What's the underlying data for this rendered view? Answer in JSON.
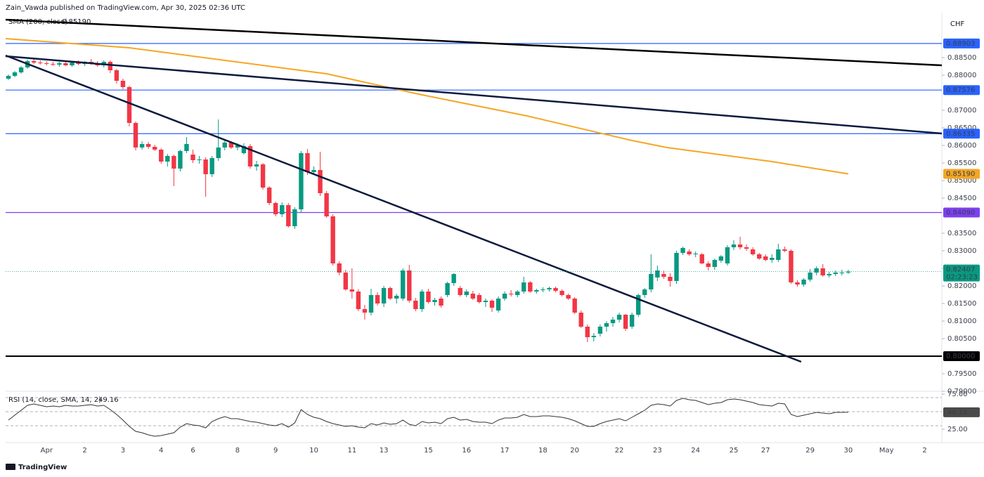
{
  "header": "Zain_Vawda published on TradingView.com, Apr 30, 2025 02:36 UTC",
  "currency": "CHF",
  "brand": "TradingView",
  "chart_data": {
    "type": "candlestick",
    "up_color": "#089981",
    "down_color": "#f23645",
    "xlim": [
      -0.44,
      146.7
    ],
    "xticks": [
      {
        "value": 6,
        "label": "Apr"
      },
      {
        "value": 12,
        "label": "2"
      },
      {
        "value": 18,
        "label": "3"
      },
      {
        "value": 24,
        "label": "4"
      },
      {
        "value": 29,
        "label": "6"
      },
      {
        "value": 36,
        "label": "8"
      },
      {
        "value": 42,
        "label": "9"
      },
      {
        "value": 48,
        "label": "10"
      },
      {
        "value": 54,
        "label": "11"
      },
      {
        "value": 59,
        "label": "13"
      },
      {
        "value": 66,
        "label": "15"
      },
      {
        "value": 72,
        "label": "16"
      },
      {
        "value": 78,
        "label": "17"
      },
      {
        "value": 84,
        "label": "18"
      },
      {
        "value": 89,
        "label": "20"
      },
      {
        "value": 96,
        "label": "22"
      },
      {
        "value": 102,
        "label": "23"
      },
      {
        "value": 108,
        "label": "24"
      },
      {
        "value": 114,
        "label": "25"
      },
      {
        "value": 119,
        "label": "27"
      },
      {
        "value": 126,
        "label": "29"
      },
      {
        "value": 132,
        "label": "30"
      },
      {
        "value": 138,
        "label": "May"
      },
      {
        "value": 144,
        "label": "2"
      }
    ],
    "ylim": [
      0.79,
      0.8978
    ],
    "yticks": [
      {
        "value": 0.885,
        "label": "0.88500"
      },
      {
        "value": 0.88,
        "label": "0.88000"
      },
      {
        "value": 0.87,
        "label": "0.87000"
      },
      {
        "value": 0.865,
        "label": "0.86500"
      },
      {
        "value": 0.86,
        "label": "0.86000"
      },
      {
        "value": 0.855,
        "label": "0.85500"
      },
      {
        "value": 0.85,
        "label": "0.85000"
      },
      {
        "value": 0.845,
        "label": "0.84500"
      },
      {
        "value": 0.835,
        "label": "0.83500"
      },
      {
        "value": 0.83,
        "label": "0.83000"
      },
      {
        "value": 0.825,
        "label": "0.82500"
      },
      {
        "value": 0.82,
        "label": "0.82000"
      },
      {
        "value": 0.815,
        "label": "0.81500"
      },
      {
        "value": 0.81,
        "label": "0.81000"
      },
      {
        "value": 0.805,
        "label": "0.80500"
      },
      {
        "value": 0.795,
        "label": "0.79500"
      },
      {
        "value": 0.79,
        "label": "0.79000"
      }
    ],
    "ohlc": [
      [
        0.879,
        0.8802,
        0.8786,
        0.8798
      ],
      [
        0.8798,
        0.8812,
        0.8794,
        0.8808
      ],
      [
        0.8808,
        0.8826,
        0.8804,
        0.8822
      ],
      [
        0.8822,
        0.8844,
        0.8818,
        0.884
      ],
      [
        0.884,
        0.8848,
        0.8832,
        0.8836
      ],
      [
        0.8836,
        0.8842,
        0.883,
        0.8834
      ],
      [
        0.8834,
        0.884,
        0.8828,
        0.8832
      ],
      [
        0.8832,
        0.8838,
        0.8826,
        0.883
      ],
      [
        0.883,
        0.8838,
        0.8824,
        0.8834
      ],
      [
        0.8834,
        0.8842,
        0.8826,
        0.8828
      ],
      [
        0.8828,
        0.884,
        0.8824,
        0.8836
      ],
      [
        0.8836,
        0.8842,
        0.8828,
        0.8832
      ],
      [
        0.8832,
        0.884,
        0.8826,
        0.8838
      ],
      [
        0.8838,
        0.8846,
        0.883,
        0.8834
      ],
      [
        0.8834,
        0.884,
        0.8824,
        0.8828
      ],
      [
        0.8828,
        0.8842,
        0.8822,
        0.8838
      ],
      [
        0.8838,
        0.8842,
        0.8806,
        0.8814
      ],
      [
        0.8814,
        0.8818,
        0.8776,
        0.8784
      ],
      [
        0.8784,
        0.879,
        0.876,
        0.8766
      ],
      [
        0.8766,
        0.877,
        0.8654,
        0.8664
      ],
      [
        0.8664,
        0.8668,
        0.8586,
        0.8594
      ],
      [
        0.8594,
        0.8612,
        0.8588,
        0.8604
      ],
      [
        0.8604,
        0.861,
        0.859,
        0.8596
      ],
      [
        0.8596,
        0.8602,
        0.8584,
        0.8588
      ],
      [
        0.8588,
        0.8592,
        0.8548,
        0.8554
      ],
      [
        0.8554,
        0.8576,
        0.854,
        0.857
      ],
      [
        0.857,
        0.8574,
        0.8484,
        0.8534
      ],
      [
        0.8534,
        0.8588,
        0.8526,
        0.8584
      ],
      [
        0.8584,
        0.8624,
        0.8578,
        0.8604
      ],
      [
        0.8574,
        0.8588,
        0.855,
        0.8558
      ],
      [
        0.8558,
        0.857,
        0.8548,
        0.856
      ],
      [
        0.856,
        0.8566,
        0.8454,
        0.8518
      ],
      [
        0.8518,
        0.857,
        0.851,
        0.8564
      ],
      [
        0.8564,
        0.8674,
        0.8556,
        0.8594
      ],
      [
        0.8594,
        0.8614,
        0.8586,
        0.8608
      ],
      [
        0.8608,
        0.8612,
        0.859,
        0.8594
      ],
      [
        0.8594,
        0.8606,
        0.8586,
        0.86
      ],
      [
        0.8578,
        0.8606,
        0.8574,
        0.8598
      ],
      [
        0.8598,
        0.8604,
        0.8534,
        0.854
      ],
      [
        0.854,
        0.8556,
        0.8528,
        0.8546
      ],
      [
        0.8546,
        0.855,
        0.8474,
        0.848
      ],
      [
        0.848,
        0.8484,
        0.843,
        0.8436
      ],
      [
        0.8436,
        0.844,
        0.8398,
        0.8404
      ],
      [
        0.8404,
        0.8438,
        0.8396,
        0.843
      ],
      [
        0.843,
        0.8436,
        0.8366,
        0.837
      ],
      [
        0.837,
        0.8424,
        0.8362,
        0.8418
      ],
      [
        0.8418,
        0.8584,
        0.841,
        0.8578
      ],
      [
        0.8578,
        0.859,
        0.8516,
        0.8524
      ],
      [
        0.8524,
        0.854,
        0.8518,
        0.853
      ],
      [
        0.853,
        0.8582,
        0.8456,
        0.8464
      ],
      [
        0.8464,
        0.847,
        0.8394,
        0.8398
      ],
      [
        0.8398,
        0.8404,
        0.8258,
        0.8264
      ],
      [
        0.8264,
        0.827,
        0.823,
        0.8238
      ],
      [
        0.8238,
        0.8246,
        0.8186,
        0.819
      ],
      [
        0.819,
        0.825,
        0.8164,
        0.8184
      ],
      [
        0.8184,
        0.819,
        0.8128,
        0.8134
      ],
      [
        0.8134,
        0.8146,
        0.8104,
        0.8124
      ],
      [
        0.8124,
        0.8192,
        0.8116,
        0.8174
      ],
      [
        0.8174,
        0.8182,
        0.8144,
        0.815
      ],
      [
        0.815,
        0.82,
        0.814,
        0.8194
      ],
      [
        0.8194,
        0.8198,
        0.816,
        0.8164
      ],
      [
        0.8164,
        0.8178,
        0.815,
        0.8172
      ],
      [
        0.8164,
        0.825,
        0.8158,
        0.8244
      ],
      [
        0.8244,
        0.826,
        0.8152,
        0.8158
      ],
      [
        0.8158,
        0.8166,
        0.8128,
        0.8134
      ],
      [
        0.8134,
        0.819,
        0.8126,
        0.8184
      ],
      [
        0.8184,
        0.8192,
        0.815,
        0.8154
      ],
      [
        0.8154,
        0.8166,
        0.8144,
        0.816
      ],
      [
        0.8164,
        0.817,
        0.8138,
        0.8144
      ],
      [
        0.8174,
        0.8212,
        0.8168,
        0.8208
      ],
      [
        0.8208,
        0.8236,
        0.82,
        0.8234
      ],
      [
        0.8194,
        0.82,
        0.817,
        0.8174
      ],
      [
        0.8174,
        0.819,
        0.8168,
        0.8184
      ],
      [
        0.8178,
        0.8186,
        0.816,
        0.8164
      ],
      [
        0.8174,
        0.818,
        0.815,
        0.8154
      ],
      [
        0.8154,
        0.8164,
        0.814,
        0.8158
      ],
      [
        0.8158,
        0.8162,
        0.8126,
        0.8138
      ],
      [
        0.813,
        0.817,
        0.8124,
        0.8164
      ],
      [
        0.8164,
        0.8184,
        0.8158,
        0.8178
      ],
      [
        0.8178,
        0.8188,
        0.817,
        0.8176
      ],
      [
        0.8174,
        0.8188,
        0.8168,
        0.8184
      ],
      [
        0.8184,
        0.8226,
        0.8178,
        0.821
      ],
      [
        0.821,
        0.8214,
        0.818,
        0.8184
      ],
      [
        0.8184,
        0.8192,
        0.8178,
        0.8188
      ],
      [
        0.8188,
        0.8196,
        0.8182,
        0.819
      ],
      [
        0.819,
        0.8198,
        0.8184,
        0.8194
      ],
      [
        0.8194,
        0.8198,
        0.8182,
        0.8186
      ],
      [
        0.8186,
        0.819,
        0.817,
        0.8174
      ],
      [
        0.8174,
        0.8178,
        0.816,
        0.8164
      ],
      [
        0.8164,
        0.8168,
        0.812,
        0.8124
      ],
      [
        0.8124,
        0.813,
        0.808,
        0.8084
      ],
      [
        0.8084,
        0.809,
        0.804,
        0.8054
      ],
      [
        0.8054,
        0.8066,
        0.8042,
        0.8058
      ],
      [
        0.8064,
        0.809,
        0.8056,
        0.8084
      ],
      [
        0.8084,
        0.81,
        0.807,
        0.8094
      ],
      [
        0.8094,
        0.8112,
        0.8084,
        0.8104
      ],
      [
        0.8104,
        0.8124,
        0.8096,
        0.8118
      ],
      [
        0.8118,
        0.812,
        0.8072,
        0.8078
      ],
      [
        0.8084,
        0.8124,
        0.8078,
        0.8118
      ],
      [
        0.8118,
        0.8178,
        0.8112,
        0.8174
      ],
      [
        0.8174,
        0.8194,
        0.8166,
        0.819
      ],
      [
        0.819,
        0.829,
        0.8182,
        0.8234
      ],
      [
        0.8224,
        0.8258,
        0.8214,
        0.8244
      ],
      [
        0.8234,
        0.8244,
        0.822,
        0.8226
      ],
      [
        0.8226,
        0.8236,
        0.8198,
        0.8214
      ],
      [
        0.8214,
        0.83,
        0.8206,
        0.8294
      ],
      [
        0.8294,
        0.8312,
        0.8288,
        0.8308
      ],
      [
        0.8298,
        0.8304,
        0.8286,
        0.829
      ],
      [
        0.829,
        0.8298,
        0.8282,
        0.8292
      ],
      [
        0.829,
        0.8294,
        0.8262,
        0.8264
      ],
      [
        0.8264,
        0.827,
        0.8244,
        0.8254
      ],
      [
        0.8254,
        0.8278,
        0.8246,
        0.8274
      ],
      [
        0.8272,
        0.8288,
        0.8266,
        0.8284
      ],
      [
        0.8264,
        0.8316,
        0.8258,
        0.831
      ],
      [
        0.831,
        0.833,
        0.8302,
        0.8318
      ],
      [
        0.8318,
        0.834,
        0.8304,
        0.831
      ],
      [
        0.831,
        0.8318,
        0.83,
        0.8306
      ],
      [
        0.8304,
        0.831,
        0.8286,
        0.829
      ],
      [
        0.829,
        0.8294,
        0.8274,
        0.8278
      ],
      [
        0.8284,
        0.829,
        0.827,
        0.8274
      ],
      [
        0.8274,
        0.829,
        0.8266,
        0.828
      ],
      [
        0.8274,
        0.832,
        0.8268,
        0.8304
      ],
      [
        0.8304,
        0.8312,
        0.8296,
        0.83
      ],
      [
        0.83,
        0.8304,
        0.8206,
        0.821
      ],
      [
        0.821,
        0.8216,
        0.8198,
        0.8204
      ],
      [
        0.8204,
        0.8222,
        0.8198,
        0.8218
      ],
      [
        0.8218,
        0.8248,
        0.8212,
        0.8238
      ],
      [
        0.8238,
        0.8256,
        0.823,
        0.825
      ],
      [
        0.825,
        0.8262,
        0.8226,
        0.823
      ],
      [
        0.823,
        0.824,
        0.8224,
        0.8234
      ],
      [
        0.8234,
        0.8244,
        0.8228,
        0.8238
      ],
      [
        0.8236,
        0.8246,
        0.823,
        0.8238
      ],
      [
        0.8238,
        0.8246,
        0.8234,
        0.82407
      ]
    ],
    "price_levels": [
      {
        "value": 0.88903,
        "label": "0.88903",
        "color": "#2962ff",
        "label_color": "#ffffff"
      },
      {
        "value": 0.87576,
        "label": "0.87576",
        "color": "#2962ff",
        "label_color": "#ffffff"
      },
      {
        "value": 0.86335,
        "label": "0.86335",
        "color": "#2962ff",
        "label_color": "#ffffff"
      },
      {
        "value": 0.8409,
        "label": "0.84090",
        "color": "#7e3ff2",
        "label_color": "#ffffff"
      },
      {
        "value": 0.8,
        "label": "0.80000",
        "color": "#000000",
        "label_color": "#ffffff"
      }
    ],
    "trendlines": [
      {
        "color": "#000000",
        "x": [
          -0.44,
          146.7
        ],
        "values": [
          0.8958,
          0.8828
        ]
      },
      {
        "color": "#0d1b3e",
        "x": [
          -0.44,
          146.7
        ],
        "values": [
          0.8854,
          0.8634
        ]
      },
      {
        "color": "#0d1b3e",
        "x": [
          -0.44,
          124.6
        ],
        "values": [
          0.8856,
          0.7984
        ]
      }
    ],
    "sma": {
      "name": "SMA (200, close)",
      "color": "#f5a623",
      "x": [
        -0.44,
        19,
        50,
        65,
        81.5,
        98,
        103.5,
        120,
        132
      ],
      "values": [
        0.8904,
        0.8878,
        0.8804,
        0.8744,
        0.8684,
        0.8614,
        0.8594,
        0.8554,
        0.8519
      ],
      "current": {
        "value": 0.8519,
        "label": "0.85190"
      }
    },
    "current": {
      "value": 0.82407,
      "countdown": "02:23:23"
    },
    "rsi": {
      "name": "RSI (14, close, SMA, 14, 2)",
      "color": "#333333",
      "ylim": [
        6,
        76
      ],
      "yticks": [
        {
          "value": 75,
          "label": "75.00"
        },
        {
          "value": 25,
          "label": "25.00"
        }
      ],
      "levels": [
        70,
        50,
        30
      ],
      "current": 49.16,
      "values": [
        38,
        45,
        52,
        59,
        61,
        59,
        57,
        58,
        57,
        59,
        58,
        58,
        59,
        60,
        58,
        59,
        53,
        46,
        38,
        29,
        22,
        20,
        17,
        15,
        16,
        18,
        20,
        28,
        33,
        31,
        30,
        27,
        36,
        40,
        43,
        40,
        40,
        38,
        36,
        35,
        33,
        31,
        30,
        33,
        28,
        34,
        53,
        46,
        42,
        40,
        36,
        33,
        31,
        29,
        30,
        28,
        27,
        33,
        31,
        34,
        32,
        33,
        38,
        32,
        30,
        36,
        34,
        35,
        33,
        40,
        42,
        38,
        39,
        36,
        35,
        35,
        33,
        38,
        41,
        41,
        42,
        46,
        43,
        43,
        44,
        44,
        43,
        42,
        40,
        37,
        33,
        29,
        29,
        33,
        36,
        38,
        40,
        37,
        42,
        47,
        52,
        59,
        61,
        60,
        58,
        66,
        69,
        67,
        66,
        63,
        60,
        62,
        63,
        67,
        68,
        67,
        65,
        63,
        60,
        59,
        58,
        62,
        61,
        46,
        43,
        45,
        47,
        49,
        48,
        47,
        49,
        49,
        49.16
      ]
    }
  }
}
